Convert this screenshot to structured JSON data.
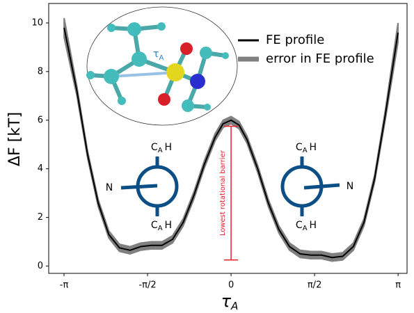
{
  "chart_data": {
    "type": "line",
    "ylabel": "ΔF [kT]",
    "xlabel": [
      "τ",
      "A"
    ],
    "xlim": [
      -3.43,
      3.31
    ],
    "ylim": [
      -0.3,
      10.8
    ],
    "xticks": [
      {
        "value": -3.14159,
        "label": "-π"
      },
      {
        "value": -1.5708,
        "label": "-π/2"
      },
      0,
      {
        "value": 1.5708,
        "label": "π/2"
      },
      {
        "value": 3.14159,
        "label": "π"
      }
    ],
    "yticks": [
      0,
      2,
      4,
      6,
      8,
      10
    ],
    "legend": "upper right",
    "x": [
      -3.14,
      -2.9,
      -2.7,
      -2.5,
      -2.3,
      -2.1,
      -1.9,
      -1.7,
      -1.5,
      -1.3,
      -1.1,
      -0.9,
      -0.7,
      -0.5,
      -0.3,
      -0.15,
      0,
      0.15,
      0.3,
      0.5,
      0.7,
      0.9,
      1.1,
      1.3,
      1.5,
      1.7,
      1.9,
      2.1,
      2.3,
      2.5,
      2.7,
      2.9,
      3.14
    ],
    "series": [
      {
        "name": "FE profile",
        "color": "#000000",
        "values": [
          9.8,
          7.2,
          4.6,
          2.6,
          1.3,
          0.75,
          0.65,
          0.8,
          0.85,
          0.85,
          1.1,
          1.8,
          2.9,
          4.2,
          5.3,
          5.85,
          6.0,
          5.8,
          5.2,
          4.0,
          2.6,
          1.5,
          0.8,
          0.5,
          0.45,
          0.45,
          0.35,
          0.4,
          0.8,
          1.8,
          3.6,
          6.2,
          9.6
        ]
      },
      {
        "name": "error in FE profile",
        "color": "#808080",
        "upper": [
          10.2,
          7.4,
          4.75,
          2.75,
          1.45,
          0.9,
          0.8,
          0.95,
          1.0,
          1.0,
          1.25,
          1.95,
          3.05,
          4.35,
          5.45,
          6.0,
          6.15,
          5.95,
          5.35,
          4.15,
          2.75,
          1.65,
          0.95,
          0.65,
          0.6,
          0.6,
          0.5,
          0.55,
          0.95,
          1.95,
          3.75,
          6.4,
          10.0
        ],
        "lower": [
          9.4,
          7.0,
          4.45,
          2.45,
          1.15,
          0.6,
          0.5,
          0.65,
          0.7,
          0.7,
          0.95,
          1.65,
          2.75,
          4.05,
          5.15,
          5.7,
          5.85,
          5.65,
          5.05,
          3.85,
          2.45,
          1.35,
          0.65,
          0.35,
          0.3,
          0.3,
          0.2,
          0.25,
          0.65,
          1.65,
          3.45,
          6.0,
          9.2
        ]
      }
    ],
    "barrier": {
      "label": "Lowest rotational barrier",
      "x": 0,
      "from": 0.25,
      "to": 5.75,
      "color": "#e8202a"
    },
    "annotations": {
      "inset_torsion": [
        "τ",
        "A"
      ],
      "newman_atom": "N",
      "newman_group": [
        "C",
        "A",
        "H"
      ]
    }
  }
}
